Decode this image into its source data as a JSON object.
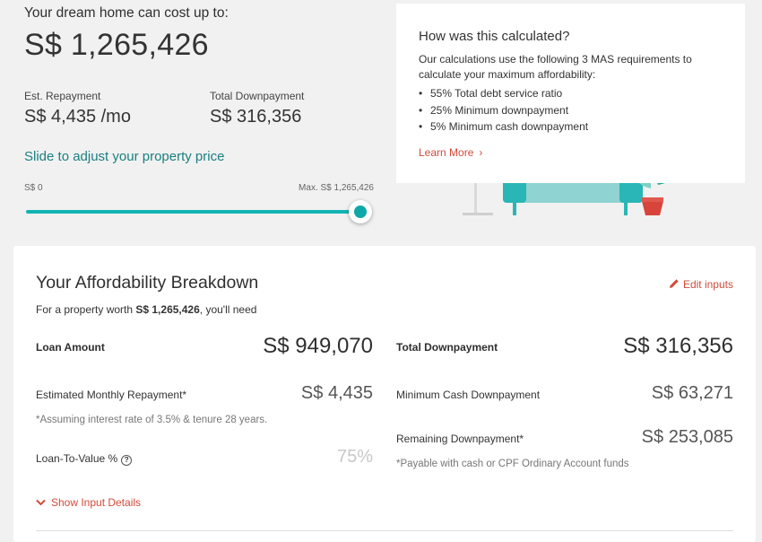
{
  "hero": {
    "title": "Your dream home can cost up to:",
    "max_price": "S$ 1,265,426",
    "repayment_label": "Est. Repayment",
    "repayment_value": "S$ 4,435 /mo",
    "downpayment_label": "Total Downpayment",
    "downpayment_value": "S$ 316,356"
  },
  "slider": {
    "title": "Slide to adjust your property price",
    "min_label": "S$ 0",
    "max_label": "Max. S$ 1,265,426",
    "level": 1.0
  },
  "info": {
    "title": "How was this calculated?",
    "text": "Our calculations use the following 3 MAS requirements to calculate your maximum affordability:",
    "items": [
      "55% Total debt service ratio",
      "25% Minimum downpayment",
      "5% Minimum cash downpayment"
    ],
    "learn_more": "Learn More"
  },
  "breakdown": {
    "title": "Your Affordability Breakdown",
    "subtitle_prefix": "For a property worth ",
    "subtitle_amount": "S$ 1,265,426",
    "subtitle_suffix": ", you'll need",
    "edit_inputs": "Edit inputs",
    "loan_label": "Loan Amount",
    "loan_value": "S$ 949,070",
    "monthly_label": "Estimated Monthly Repayment*",
    "monthly_value": "S$ 4,435",
    "monthly_note": "*Assuming interest rate of 3.5% & tenure 28 years.",
    "ltv_label": "Loan-To-Value %",
    "ltv_value": "75%",
    "total_down_label": "Total Downpayment",
    "total_down_value": "S$ 316,356",
    "min_cash_label": "Minimum Cash Downpayment",
    "min_cash_value": "S$ 63,271",
    "remaining_label": "Remaining Downpayment*",
    "remaining_value": "S$ 253,085",
    "remaining_note": "*Payable with cash or CPF Ordinary Account funds",
    "show_details": "Show Input Details"
  },
  "colors": {
    "accent_teal": "#13b3b3",
    "link_red": "#d14b3a"
  }
}
